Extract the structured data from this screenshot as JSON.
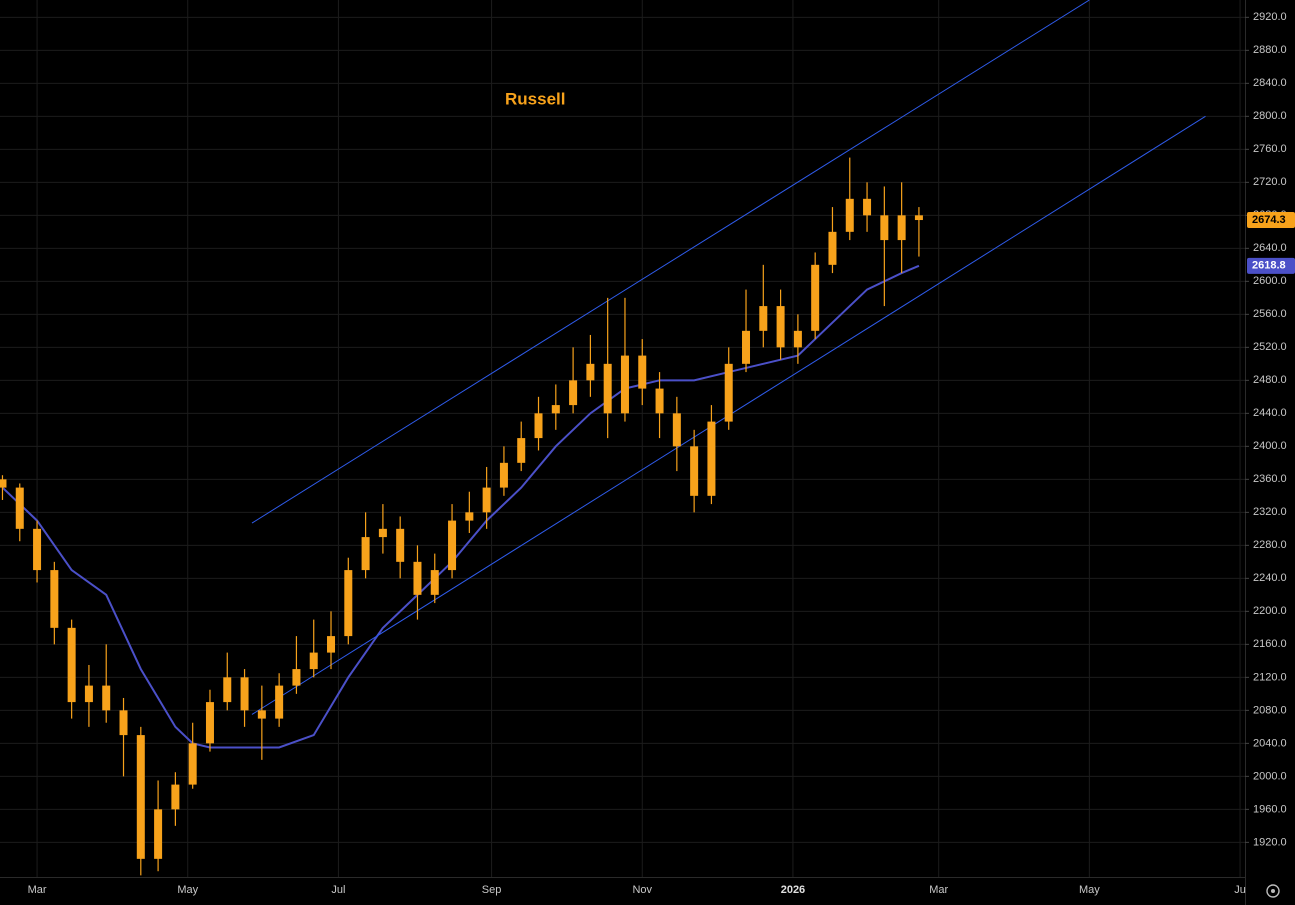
{
  "chart_data": {
    "type": "candlestick",
    "title": "Russell",
    "color": "#f7a21b",
    "x": [
      45,
      52,
      59,
      66,
      73,
      80,
      87,
      94,
      101,
      108,
      115,
      122,
      129,
      136,
      143,
      150,
      157,
      164,
      171,
      178,
      185,
      192,
      199,
      206,
      213,
      220,
      227,
      234,
      241,
      248,
      255,
      262,
      269,
      276,
      283,
      290,
      297,
      304,
      311,
      318,
      325,
      332,
      339,
      346,
      353,
      360,
      367,
      374,
      381,
      388,
      395,
      402,
      409,
      416
    ],
    "open": [
      2360,
      2350,
      2300,
      2250,
      2180,
      2090,
      2110,
      2080,
      2050,
      1900,
      1960,
      1990,
      2040,
      2090,
      2120,
      2080,
      2070,
      2110,
      2130,
      2150,
      2170,
      2250,
      2290,
      2300,
      2260,
      2220,
      2250,
      2310,
      2320,
      2350,
      2380,
      2410,
      2440,
      2450,
      2480,
      2500,
      2440,
      2510,
      2470,
      2440,
      2400,
      2340,
      2430,
      2500,
      2540,
      2570,
      2520,
      2540,
      2620,
      2660,
      2700,
      2680,
      2650,
      2680
    ],
    "high": [
      2365,
      2355,
      2310,
      2260,
      2190,
      2135,
      2160,
      2095,
      2060,
      1995,
      2005,
      2065,
      2105,
      2150,
      2130,
      2110,
      2125,
      2170,
      2190,
      2200,
      2265,
      2320,
      2330,
      2315,
      2280,
      2270,
      2330,
      2345,
      2375,
      2400,
      2430,
      2460,
      2475,
      2520,
      2535,
      2580,
      2580,
      2530,
      2490,
      2460,
      2420,
      2450,
      2520,
      2590,
      2620,
      2590,
      2560,
      2635,
      2690,
      2750,
      2720,
      2715,
      2720,
      2690
    ],
    "low": [
      2335,
      2285,
      2235,
      2160,
      2070,
      2060,
      2065,
      2000,
      1880,
      1885,
      1940,
      1985,
      2030,
      2080,
      2060,
      2020,
      2060,
      2100,
      2120,
      2130,
      2160,
      2240,
      2270,
      2240,
      2190,
      2210,
      2240,
      2295,
      2300,
      2340,
      2370,
      2395,
      2420,
      2440,
      2460,
      2410,
      2430,
      2450,
      2410,
      2370,
      2320,
      2330,
      2420,
      2490,
      2520,
      2505,
      2500,
      2530,
      2610,
      2650,
      2660,
      2570,
      2610,
      2630
    ],
    "close": [
      2350,
      2300,
      2250,
      2180,
      2090,
      2110,
      2080,
      2050,
      1900,
      1960,
      1990,
      2040,
      2090,
      2120,
      2080,
      2070,
      2110,
      2130,
      2150,
      2170,
      2250,
      2290,
      2300,
      2260,
      2220,
      2250,
      2310,
      2320,
      2350,
      2380,
      2410,
      2440,
      2450,
      2480,
      2500,
      2440,
      2510,
      2470,
      2440,
      2400,
      2340,
      2430,
      2500,
      2540,
      2570,
      2520,
      2540,
      2620,
      2660,
      2700,
      2680,
      2650,
      2680,
      2674.3
    ],
    "moving_average": {
      "color": "#4b50c8",
      "x": [
        45,
        59,
        73,
        87,
        101,
        115,
        122,
        129,
        143,
        157,
        171,
        185,
        199,
        213,
        227,
        241,
        255,
        269,
        283,
        297,
        311,
        325,
        339,
        353,
        367,
        381,
        395,
        409,
        416
      ],
      "values": [
        2350,
        2310,
        2250,
        2220,
        2130,
        2060,
        2040,
        2035,
        2035,
        2035,
        2050,
        2120,
        2180,
        2220,
        2260,
        2310,
        2350,
        2400,
        2440,
        2470,
        2480,
        2480,
        2490,
        2500,
        2510,
        2550,
        2590,
        2610,
        2618.8
      ]
    },
    "trend_color": "#2f5bea",
    "trend_lines": [
      {
        "x": [
          146,
          485
        ],
        "values": [
          2307,
          2941
        ]
      },
      {
        "x": [
          146,
          532
        ],
        "values": [
          2075,
          2800
        ]
      }
    ],
    "xlim": [
      44,
      548
    ],
    "ylim": [
      1878,
      2941
    ],
    "xticks": [
      {
        "value": 59,
        "label": "Mar"
      },
      {
        "value": 120,
        "label": "May"
      },
      {
        "value": 181,
        "label": "Jul"
      },
      {
        "value": 243,
        "label": "Sep"
      },
      {
        "value": 304,
        "label": "Nov"
      },
      {
        "value": 365,
        "label": "2026"
      },
      {
        "value": 424,
        "label": "Mar"
      },
      {
        "value": 485,
        "label": "May"
      },
      {
        "value": 546,
        "label": "Ju"
      }
    ],
    "yticks": [
      {
        "value": 1920,
        "label": "1920.0"
      },
      {
        "value": 1960,
        "label": "1960.0"
      },
      {
        "value": 2000,
        "label": "2000.0"
      },
      {
        "value": 2040,
        "label": "2040.0"
      },
      {
        "value": 2080,
        "label": "2080.0"
      },
      {
        "value": 2120,
        "label": "2120.0"
      },
      {
        "value": 2160,
        "label": "2160.0"
      },
      {
        "value": 2200,
        "label": "2200.0"
      },
      {
        "value": 2240,
        "label": "2240.0"
      },
      {
        "value": 2280,
        "label": "2280.0"
      },
      {
        "value": 2320,
        "label": "2320.0"
      },
      {
        "value": 2360,
        "label": "2360.0"
      },
      {
        "value": 2400,
        "label": "2400.0"
      },
      {
        "value": 2440,
        "label": "2440.0"
      },
      {
        "value": 2480,
        "label": "2480.0"
      },
      {
        "value": 2520,
        "label": "2520.0"
      },
      {
        "value": 2560,
        "label": "2560.0"
      },
      {
        "value": 2600,
        "label": "2600.0"
      },
      {
        "value": 2640,
        "label": "2640.0"
      },
      {
        "value": 2680,
        "label": "2680.0"
      },
      {
        "value": 2720,
        "label": "2720.0"
      },
      {
        "value": 2760,
        "label": "2760.0"
      },
      {
        "value": 2800,
        "label": "2800.0"
      },
      {
        "value": 2840,
        "label": "2840.0"
      },
      {
        "value": 2880,
        "label": "2880.0"
      },
      {
        "value": 2920,
        "label": "2920.0"
      }
    ],
    "grid": true
  }
}
